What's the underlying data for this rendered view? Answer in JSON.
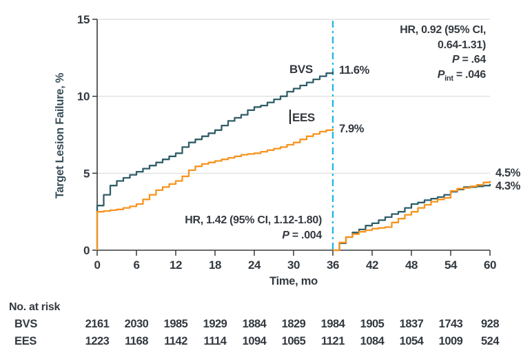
{
  "chart_data": {
    "type": "line",
    "title": "",
    "ylabel": "Target Lesion Failure, %",
    "xlabel": "Time, mo",
    "xlim": [
      0,
      60
    ],
    "ylim": [
      0,
      15
    ],
    "xticks": [
      0,
      6,
      12,
      18,
      24,
      30,
      36,
      42,
      48,
      54,
      60
    ],
    "yticks": [
      0,
      5,
      10,
      15
    ],
    "gridline_values": [
      5,
      10,
      15
    ],
    "grid": "horizontal-only",
    "landmark_month": 36,
    "series": [
      {
        "name": "BVS",
        "color": "#2F5D68",
        "label_at_36": "11.6%",
        "label_at_60": "4.3%",
        "segments": [
          [
            [
              0,
              0
            ],
            [
              0,
              2.9
            ],
            [
              1,
              3.6
            ],
            [
              2,
              4.2
            ],
            [
              3,
              4.5
            ],
            [
              4,
              4.7
            ],
            [
              5,
              4.9
            ],
            [
              6,
              5.1
            ],
            [
              7,
              5.3
            ],
            [
              8,
              5.5
            ],
            [
              9,
              5.7
            ],
            [
              10,
              5.9
            ],
            [
              11,
              6.1
            ],
            [
              12,
              6.3
            ],
            [
              13,
              6.7
            ],
            [
              14,
              7.0
            ],
            [
              15,
              7.2
            ],
            [
              16,
              7.4
            ],
            [
              17,
              7.6
            ],
            [
              18,
              7.8
            ],
            [
              19,
              8.1
            ],
            [
              20,
              8.4
            ],
            [
              21,
              8.6
            ],
            [
              22,
              8.8
            ],
            [
              23,
              9.1
            ],
            [
              24,
              9.3
            ],
            [
              25,
              9.4
            ],
            [
              26,
              9.6
            ],
            [
              27,
              9.8
            ],
            [
              28,
              10.0
            ],
            [
              29,
              10.3
            ],
            [
              30,
              10.5
            ],
            [
              31,
              10.7
            ],
            [
              32,
              10.9
            ],
            [
              33,
              11.1
            ],
            [
              34,
              11.3
            ],
            [
              35,
              11.5
            ],
            [
              36,
              11.6
            ]
          ],
          [
            [
              36,
              0
            ],
            [
              37,
              0.45
            ],
            [
              38,
              0.85
            ],
            [
              39,
              1.15
            ],
            [
              40,
              1.35
            ],
            [
              41,
              1.6
            ],
            [
              42,
              1.75
            ],
            [
              43,
              1.95
            ],
            [
              44,
              2.15
            ],
            [
              45,
              2.35
            ],
            [
              46,
              2.5
            ],
            [
              47,
              2.75
            ],
            [
              48,
              3.0
            ],
            [
              49,
              3.1
            ],
            [
              50,
              3.25
            ],
            [
              51,
              3.35
            ],
            [
              52,
              3.45
            ],
            [
              53,
              3.6
            ],
            [
              54,
              3.8
            ],
            [
              55,
              3.95
            ],
            [
              56,
              4.1
            ],
            [
              57,
              4.1
            ],
            [
              58,
              4.15
            ],
            [
              59,
              4.2
            ],
            [
              60,
              4.3
            ]
          ]
        ]
      },
      {
        "name": "EES",
        "color": "#F7941E",
        "label_at_36": "7.9%",
        "label_at_60": "4.5%",
        "segments": [
          [
            [
              0,
              0
            ],
            [
              0,
              2.5
            ],
            [
              1,
              2.55
            ],
            [
              2,
              2.6
            ],
            [
              3,
              2.65
            ],
            [
              4,
              2.75
            ],
            [
              5,
              2.85
            ],
            [
              6,
              3.0
            ],
            [
              7,
              3.3
            ],
            [
              8,
              3.6
            ],
            [
              9,
              3.9
            ],
            [
              10,
              4.1
            ],
            [
              11,
              4.3
            ],
            [
              12,
              4.5
            ],
            [
              13,
              4.8
            ],
            [
              14,
              5.2
            ],
            [
              15,
              5.45
            ],
            [
              16,
              5.6
            ],
            [
              17,
              5.7
            ],
            [
              18,
              5.8
            ],
            [
              19,
              5.9
            ],
            [
              20,
              6.0
            ],
            [
              21,
              6.1
            ],
            [
              22,
              6.2
            ],
            [
              23,
              6.25
            ],
            [
              24,
              6.3
            ],
            [
              25,
              6.4
            ],
            [
              26,
              6.5
            ],
            [
              27,
              6.6
            ],
            [
              28,
              6.7
            ],
            [
              29,
              6.85
            ],
            [
              30,
              7.0
            ],
            [
              31,
              7.2
            ],
            [
              32,
              7.4
            ],
            [
              33,
              7.55
            ],
            [
              34,
              7.7
            ],
            [
              35,
              7.8
            ],
            [
              36,
              7.9
            ]
          ],
          [
            [
              36,
              0
            ],
            [
              37,
              0.5
            ],
            [
              38,
              0.85
            ],
            [
              39,
              1.05
            ],
            [
              40,
              1.2
            ],
            [
              41,
              1.3
            ],
            [
              42,
              1.4
            ],
            [
              43,
              1.45
            ],
            [
              44,
              1.5
            ],
            [
              45,
              1.8
            ],
            [
              46,
              2.05
            ],
            [
              47,
              2.3
            ],
            [
              48,
              2.5
            ],
            [
              49,
              2.75
            ],
            [
              50,
              2.95
            ],
            [
              51,
              3.15
            ],
            [
              52,
              3.3
            ],
            [
              53,
              3.4
            ],
            [
              54,
              3.85
            ],
            [
              55,
              4.0
            ],
            [
              56,
              4.05
            ],
            [
              57,
              4.15
            ],
            [
              58,
              4.25
            ],
            [
              59,
              4.4
            ],
            [
              60,
              4.5
            ]
          ]
        ]
      }
    ],
    "annotations": {
      "hr_top": {
        "line1": "HR, 0.92 (95% CI,",
        "line2": "0.64-1.31)",
        "p_symbol": "P",
        "p_rest": " = .64",
        "pint_symbol": "P",
        "pint_sub": "int",
        "pint_rest": " = .046"
      },
      "hr_bottom": {
        "line1": "HR, 1.42 (95% CI, 1.12-1.80)",
        "p_symbol": "P",
        "p_rest": " = .004"
      }
    }
  },
  "risk_table": {
    "title": "No. at risk",
    "rows": [
      {
        "label": "BVS",
        "counts": [
          "2161",
          "2030",
          "1985",
          "1929",
          "1884",
          "1829",
          "1984",
          "1905",
          "1837",
          "1743",
          "928"
        ]
      },
      {
        "label": "EES",
        "counts": [
          "1223",
          "1168",
          "1142",
          "1114",
          "1094",
          "1065",
          "1121",
          "1084",
          "1054",
          "1009",
          "524"
        ]
      }
    ]
  },
  "colors": {
    "bvs": "#2F5D68",
    "ees": "#F7941E",
    "landmark_line": "#29B5E8",
    "grid": "#DADADA",
    "axis": "#37383A",
    "text": "#333940",
    "ylabel_text": "#374E58",
    "background": "#FFFFFF"
  }
}
